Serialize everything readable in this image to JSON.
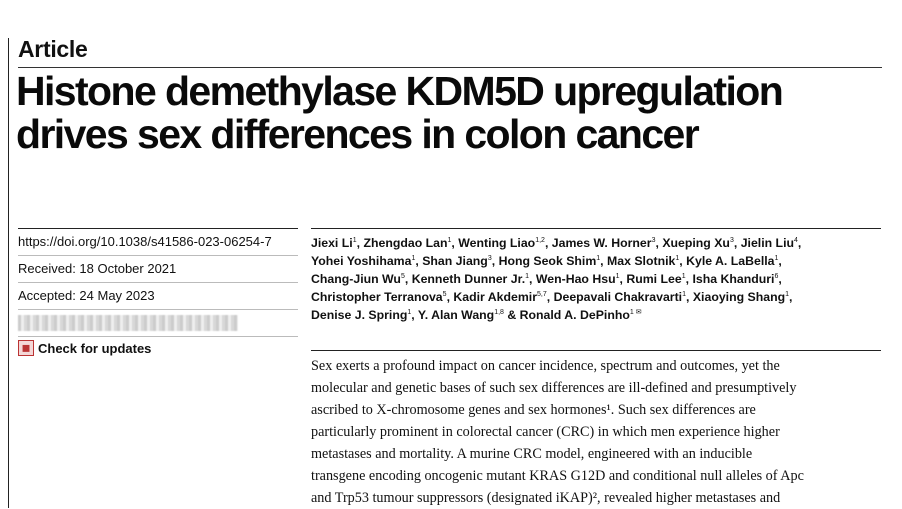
{
  "article_label": "Article",
  "title": {
    "line1": "Histone demethylase KDM5D upregulation",
    "line2": "drives sex differences in colon cancer"
  },
  "meta": {
    "doi": "https://doi.org/10.1038/s41586-023-06254-7",
    "received": "Received: 18 October 2021",
    "accepted": "Accepted: 24 May 2023",
    "check_updates": "Check for updates"
  },
  "authors": [
    [
      {
        "name": "Jiexi Li",
        "sup": "1",
        "sep": ", "
      },
      {
        "name": "Zhengdao Lan",
        "sup": "1",
        "sep": ", "
      },
      {
        "name": "Wenting Liao",
        "sup": "1,2",
        "sep": ", "
      },
      {
        "name": "James W. Horner",
        "sup": "3",
        "sep": ", "
      },
      {
        "name": "Xueping Xu",
        "sup": "3",
        "sep": ", "
      },
      {
        "name": "Jielin Liu",
        "sup": "4",
        "sep": ","
      }
    ],
    [
      {
        "name": "Yohei Yoshihama",
        "sup": "1",
        "sep": ", "
      },
      {
        "name": "Shan Jiang",
        "sup": "3",
        "sep": ", "
      },
      {
        "name": "Hong Seok Shim",
        "sup": "1",
        "sep": ", "
      },
      {
        "name": "Max Slotnik",
        "sup": "1",
        "sep": ", "
      },
      {
        "name": "Kyle A. LaBella",
        "sup": "1",
        "sep": ","
      }
    ],
    [
      {
        "name": "Chang-Jiun Wu",
        "sup": "5",
        "sep": ", "
      },
      {
        "name": "Kenneth Dunner Jr.",
        "sup": "1",
        "sep": ", "
      },
      {
        "name": "Wen-Hao Hsu",
        "sup": "1",
        "sep": ", "
      },
      {
        "name": "Rumi Lee",
        "sup": "1",
        "sep": ", "
      },
      {
        "name": "Isha Khanduri",
        "sup": "6",
        "sep": ","
      }
    ],
    [
      {
        "name": "Christopher Terranova",
        "sup": "5",
        "sep": ", "
      },
      {
        "name": "Kadir Akdemir",
        "sup": "5,7",
        "sep": ", "
      },
      {
        "name": "Deepavali Chakravarti",
        "sup": "1",
        "sep": ", "
      },
      {
        "name": "Xiaoying Shang",
        "sup": "1",
        "sep": ","
      }
    ],
    [
      {
        "name": "Denise J. Spring",
        "sup": "1",
        "sep": ", "
      },
      {
        "name": "Y. Alan Wang",
        "sup": "1,8",
        "sep": " & "
      },
      {
        "name": "Ronald A. DePinho",
        "sup": "1 ✉",
        "sep": ""
      }
    ]
  ],
  "abstract_lines": [
    "Sex exerts a profound impact on cancer incidence, spectrum and outcomes, yet the",
    "molecular and genetic bases of such sex differences are ill-defined and presumptively",
    "ascribed to X-chromosome genes and sex hormones¹. Such sex differences are",
    "particularly prominent in colorectal cancer (CRC) in which men experience higher",
    "metastases and mortality. A murine CRC model, engineered with an inducible",
    "transgene encoding oncogenic mutant KRAS G12D and conditional null alleles of Apc",
    "and Trp53 tumour suppressors (designated iKAP)², revealed higher metastases and"
  ]
}
